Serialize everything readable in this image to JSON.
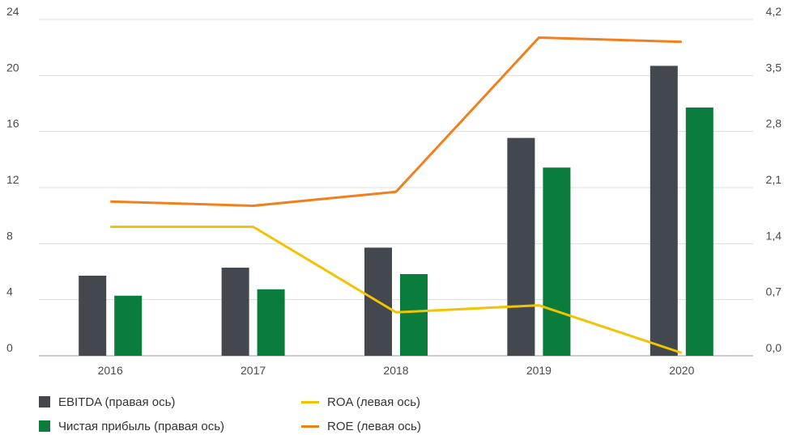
{
  "chart_data": {
    "type": "bar",
    "categories": [
      "2016",
      "2017",
      "2018",
      "2019",
      "2020"
    ],
    "left_axis": {
      "ticks": [
        "0",
        "4",
        "8",
        "12",
        "16",
        "20",
        "24"
      ],
      "ylim": [
        0,
        24
      ]
    },
    "right_axis": {
      "ticks": [
        "0,0",
        "0,7",
        "1,4",
        "2,1",
        "2,8",
        "3,5",
        "4,2"
      ],
      "ylim": [
        0,
        4.2
      ]
    },
    "series": [
      {
        "name": "EBITDA (правая ось)",
        "kind": "bar",
        "axis": "right",
        "color": "#43484e",
        "values": [
          1.0,
          1.1,
          1.35,
          2.72,
          3.62
        ]
      },
      {
        "name": "Чистая прибыль (правая ось)",
        "kind": "bar",
        "axis": "right",
        "color": "#0a7d3c",
        "values": [
          0.75,
          0.83,
          1.02,
          2.35,
          3.1
        ]
      },
      {
        "name": "ROA (левая ось)",
        "kind": "line",
        "axis": "left",
        "color": "#f2c300",
        "values": [
          9.2,
          9.2,
          3.1,
          3.6,
          0.2
        ]
      },
      {
        "name": "ROE (левая ось)",
        "kind": "line",
        "axis": "left",
        "color": "#f07f1e",
        "values": [
          11.0,
          10.7,
          11.7,
          22.7,
          22.4
        ]
      }
    ],
    "grid": true,
    "legend_position": "bottom"
  }
}
